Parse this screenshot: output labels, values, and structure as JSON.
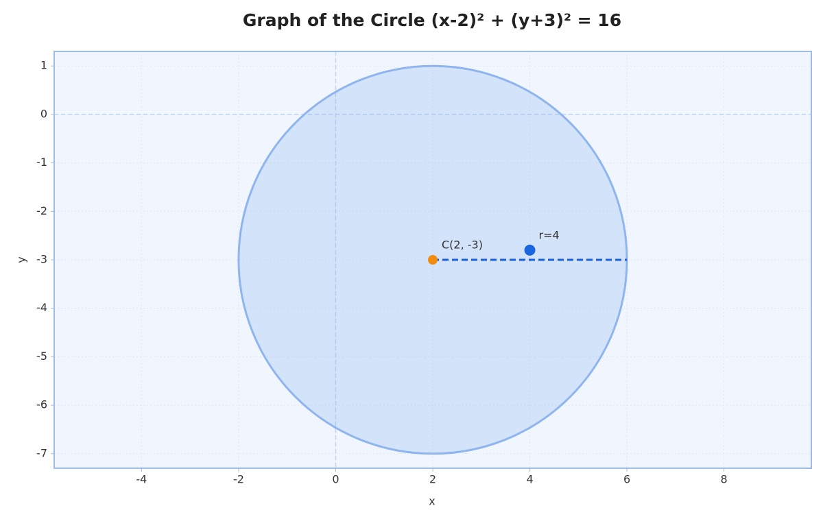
{
  "chart_data": {
    "type": "circle",
    "title": "Graph of the Circle (x-2)² + (y+3)² = 16",
    "x_label": "x",
    "y_label": "y",
    "center": [
      2,
      -3
    ],
    "radius": 4,
    "circle_color": "#8fb5ef",
    "radius_line_color": "#1a5fe0",
    "points": [
      {
        "label": "C(2, -3)",
        "x": 2,
        "y": -3,
        "color": "#f28c0f"
      },
      {
        "label": "r=4",
        "x": 4,
        "y": -2.8,
        "color": "#1a66e0"
      }
    ],
    "xlim": [
      -5.8,
      9.8
    ],
    "ylim": [
      -7.3,
      1.3
    ],
    "xticks": [
      -4,
      -2,
      0,
      2,
      4,
      6,
      8
    ],
    "yticks": [
      1,
      0,
      -1,
      -2,
      -3,
      -4,
      -5,
      -6,
      -7
    ],
    "grid": true
  }
}
